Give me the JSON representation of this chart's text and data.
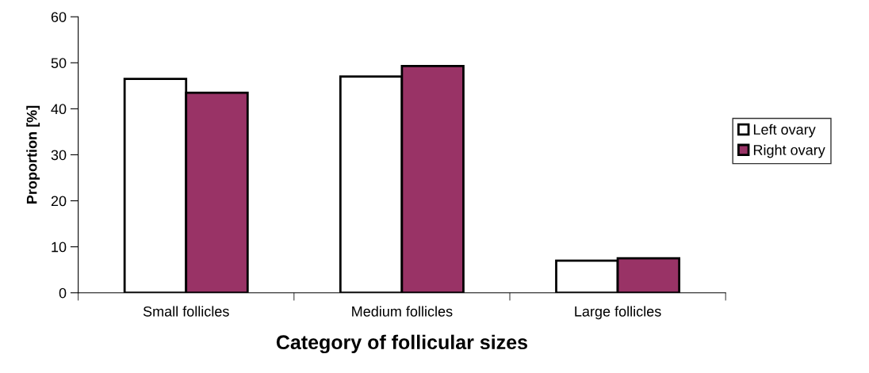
{
  "chart_data": {
    "type": "bar",
    "xlabel": "Category of follicular sizes",
    "ylabel": "Proportion [%]",
    "categories": [
      "Small follicles",
      "Medium follicles",
      "Large follicles"
    ],
    "series": [
      {
        "name": "Left ovary",
        "color": "#ffffff",
        "values": [
          46.5,
          47,
          7
        ]
      },
      {
        "name": "Right ovary",
        "color": "#993366",
        "values": [
          43.5,
          49.3,
          7.5
        ]
      }
    ],
    "ylim": [
      0,
      60
    ],
    "yticks": [
      0,
      10,
      20,
      30,
      40,
      50,
      60
    ],
    "grid": false,
    "legend": "right"
  }
}
